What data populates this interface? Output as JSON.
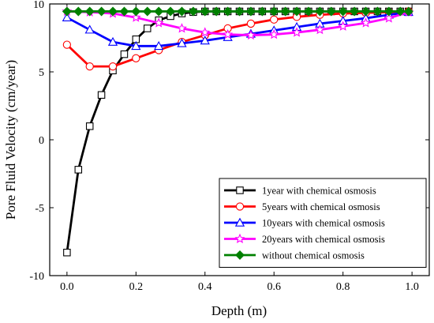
{
  "chart_data": {
    "type": "line",
    "xlabel": "Depth (m)",
    "ylabel": "Pore Fluid Velocity (cm/year)",
    "xlim": [
      -0.05,
      1.05
    ],
    "ylim": [
      -10,
      10
    ],
    "xticks": [
      "0.0",
      "0.2",
      "0.4",
      "0.6",
      "0.8",
      "1.0"
    ],
    "yticks": [
      "-10",
      "-5",
      "0",
      "5",
      "10"
    ],
    "grid": false,
    "legend_position": "bottom-right",
    "series": [
      {
        "name": "1year  with chemical osmosis",
        "color": "#000000",
        "marker": "open-square",
        "x": [
          0.0,
          0.033,
          0.066,
          0.1,
          0.133,
          0.166,
          0.2,
          0.233,
          0.266,
          0.3,
          0.333,
          0.366,
          0.4,
          0.433,
          0.466,
          0.5,
          0.533,
          0.566,
          0.6,
          0.633,
          0.666,
          0.7,
          0.733,
          0.766,
          0.8,
          0.833,
          0.866,
          0.9,
          0.933,
          0.966,
          0.99
        ],
        "y": [
          -8.3,
          -2.2,
          1.0,
          3.3,
          5.1,
          6.3,
          7.4,
          8.2,
          8.8,
          9.1,
          9.3,
          9.4,
          9.45,
          9.45,
          9.45,
          9.45,
          9.45,
          9.45,
          9.45,
          9.45,
          9.45,
          9.45,
          9.45,
          9.45,
          9.45,
          9.45,
          9.45,
          9.45,
          9.45,
          9.45,
          9.45
        ]
      },
      {
        "name": "5years  with chemical osmosis",
        "color": "#ff0000",
        "marker": "open-circle",
        "x": [
          0.0,
          0.066,
          0.133,
          0.2,
          0.266,
          0.333,
          0.4,
          0.466,
          0.533,
          0.6,
          0.666,
          0.733,
          0.8,
          0.866,
          0.933,
          0.99
        ],
        "y": [
          7.0,
          5.4,
          5.4,
          6.0,
          6.6,
          7.2,
          7.7,
          8.2,
          8.55,
          8.85,
          9.05,
          9.2,
          9.3,
          9.35,
          9.4,
          9.45
        ]
      },
      {
        "name": "10years  with chemical osmosis",
        "color": "#0000ff",
        "marker": "open-triangle",
        "x": [
          0.0,
          0.066,
          0.133,
          0.2,
          0.266,
          0.333,
          0.4,
          0.466,
          0.533,
          0.6,
          0.666,
          0.733,
          0.8,
          0.866,
          0.933,
          0.99
        ],
        "y": [
          9.0,
          8.1,
          7.2,
          6.9,
          6.9,
          7.1,
          7.3,
          7.55,
          7.8,
          8.05,
          8.3,
          8.55,
          8.75,
          8.95,
          9.2,
          9.4
        ]
      },
      {
        "name": "20years  with chemical osmosis",
        "color": "#ff00ff",
        "marker": "open-star",
        "x": [
          0.0,
          0.066,
          0.133,
          0.2,
          0.266,
          0.333,
          0.4,
          0.466,
          0.533,
          0.6,
          0.666,
          0.733,
          0.8,
          0.866,
          0.933,
          0.99
        ],
        "y": [
          9.45,
          9.4,
          9.3,
          9.0,
          8.6,
          8.2,
          7.9,
          7.75,
          7.7,
          7.75,
          7.9,
          8.1,
          8.35,
          8.6,
          8.95,
          9.4
        ]
      },
      {
        "name": "without chemical osmosis",
        "color": "#008000",
        "marker": "filled-diamond",
        "x": [
          0.0,
          0.033,
          0.066,
          0.1,
          0.133,
          0.166,
          0.2,
          0.233,
          0.266,
          0.3,
          0.333,
          0.366,
          0.4,
          0.433,
          0.466,
          0.5,
          0.533,
          0.566,
          0.6,
          0.633,
          0.666,
          0.7,
          0.733,
          0.766,
          0.8,
          0.833,
          0.866,
          0.9,
          0.933,
          0.966,
          0.99
        ],
        "y": [
          9.45,
          9.45,
          9.45,
          9.45,
          9.45,
          9.45,
          9.45,
          9.45,
          9.45,
          9.45,
          9.45,
          9.45,
          9.45,
          9.45,
          9.45,
          9.45,
          9.45,
          9.45,
          9.45,
          9.45,
          9.45,
          9.45,
          9.45,
          9.45,
          9.45,
          9.45,
          9.45,
          9.45,
          9.45,
          9.45,
          9.45
        ]
      }
    ]
  }
}
